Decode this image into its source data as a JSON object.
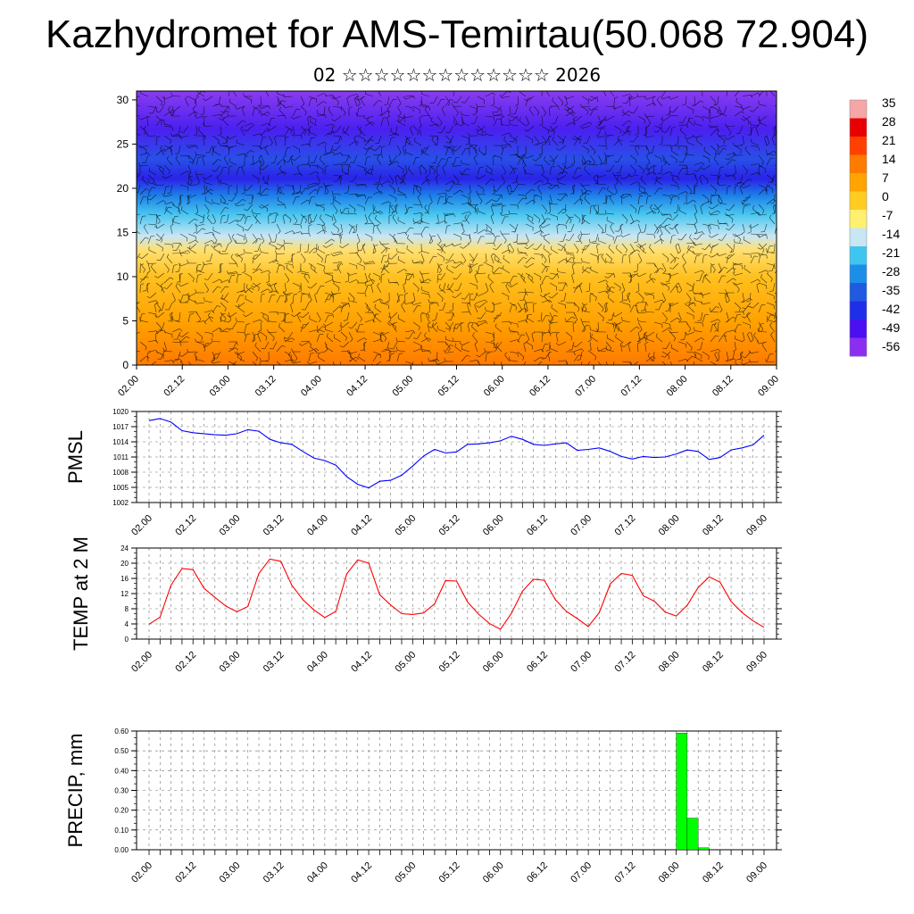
{
  "title": "Kazhydromet for AMS-Temirtau(50.068 72.904)",
  "subtitle": "02 ☆☆☆☆☆☆☆☆☆☆☆☆☆ 2026",
  "chart_data": [
    {
      "type": "heatmap",
      "description_panel": "cross-section",
      "x_ticks": [
        "02.00",
        "02.12",
        "03.00",
        "03.12",
        "04.00",
        "04.12",
        "05.00",
        "05.12",
        "06.00",
        "06.12",
        "07.00",
        "07.12",
        "08.00",
        "08.12",
        "09.00"
      ],
      "y_ticks": [
        0,
        5,
        10,
        15,
        20,
        25,
        30
      ],
      "ylim": [
        0,
        31
      ],
      "colorbar": {
        "labels": [
          "35",
          "28",
          "21",
          "14",
          "7",
          "0",
          "-7",
          "-14",
          "-21",
          "-28",
          "-35",
          "-42",
          "-49",
          "-56"
        ],
        "colors": [
          "#f6a6a6",
          "#e80000",
          "#ff4000",
          "#ff7a00",
          "#ffa400",
          "#ffcc22",
          "#fff070",
          "#c8e6f4",
          "#3fc6f0",
          "#1d8ee8",
          "#1f5ae0",
          "#1f2ee8",
          "#4a10f0",
          "#8a2ef0"
        ]
      }
    },
    {
      "type": "line",
      "ylabel": "PMSL",
      "ylim": [
        1002,
        1020
      ],
      "y_ticks": [
        1002,
        1005,
        1008,
        1011,
        1014,
        1017,
        1020
      ],
      "x_ticks": [
        "02.00",
        "02.12",
        "03.00",
        "03.12",
        "04.00",
        "04.12",
        "05.00",
        "05.12",
        "06.00",
        "06.12",
        "07.00",
        "07.12",
        "08.00",
        "08.12",
        "09.00"
      ],
      "series": [
        {
          "color": "#0000ff",
          "values": [
            1018.2,
            1018.6,
            1017.9,
            1016.2,
            1015.8,
            1015.6,
            1015.4,
            1015.3,
            1015.6,
            1016.4,
            1016.1,
            1014.5,
            1013.8,
            1013.5,
            1012.1,
            1010.8,
            1010.3,
            1009.4,
            1007.1,
            1005.6,
            1004.9,
            1006.2,
            1006.4,
            1007.4,
            1009.2,
            1011.2,
            1012.5,
            1011.8,
            1012.0,
            1013.5,
            1013.6,
            1013.8,
            1014.2,
            1015.1,
            1014.5,
            1013.5,
            1013.3,
            1013.6,
            1013.8,
            1012.3,
            1012.5,
            1012.8,
            1012.1,
            1011.1,
            1010.6,
            1011.1,
            1010.9,
            1011.0,
            1011.6,
            1012.4,
            1012.1,
            1010.5,
            1010.9,
            1012.4,
            1012.8,
            1013.4,
            1015.3
          ]
        }
      ]
    },
    {
      "type": "line",
      "ylabel": "TEMP at 2 M",
      "ylim": [
        0,
        24
      ],
      "y_ticks": [
        0,
        4,
        8,
        12,
        16,
        20,
        24
      ],
      "x_ticks": [
        "02.00",
        "02.12",
        "03.00",
        "03.12",
        "04.00",
        "04.12",
        "05.00",
        "05.12",
        "06.00",
        "06.12",
        "07.00",
        "07.12",
        "08.00",
        "08.12",
        "09.00"
      ],
      "series": [
        {
          "color": "#ff0000",
          "values": [
            3.9,
            5.8,
            14.2,
            18.6,
            18.3,
            13.4,
            11.0,
            8.7,
            7.2,
            8.6,
            17.3,
            21.1,
            20.5,
            14.2,
            10.4,
            7.7,
            5.7,
            7.3,
            17.2,
            20.9,
            20.0,
            11.7,
            9.0,
            6.7,
            6.5,
            6.9,
            9.3,
            15.4,
            15.3,
            9.8,
            6.6,
            4.1,
            2.6,
            6.8,
            12.6,
            15.8,
            15.5,
            10.4,
            7.3,
            5.4,
            3.3,
            7.0,
            14.6,
            17.3,
            16.8,
            11.4,
            10.0,
            7.1,
            6.1,
            8.9,
            13.6,
            16.4,
            15.0,
            9.9,
            7.0,
            4.8,
            3.1
          ]
        }
      ]
    },
    {
      "type": "bar",
      "ylabel": "PRECIP, mm",
      "ylim": [
        0,
        0.6
      ],
      "y_ticks": [
        "0.00",
        "0.10",
        "0.20",
        "0.30",
        "0.40",
        "0.50",
        "0.60"
      ],
      "x_ticks": [
        "02.00",
        "02.12",
        "03.00",
        "03.12",
        "04.00",
        "04.12",
        "05.00",
        "05.12",
        "06.00",
        "06.12",
        "07.00",
        "07.12",
        "08.00",
        "08.12",
        "09.00"
      ],
      "color": "#00ff00",
      "bars": [
        {
          "x_index": 49,
          "value": 0.59
        },
        {
          "x_index": 50,
          "value": 0.16
        },
        {
          "x_index": 51,
          "value": 0.01
        }
      ]
    }
  ]
}
